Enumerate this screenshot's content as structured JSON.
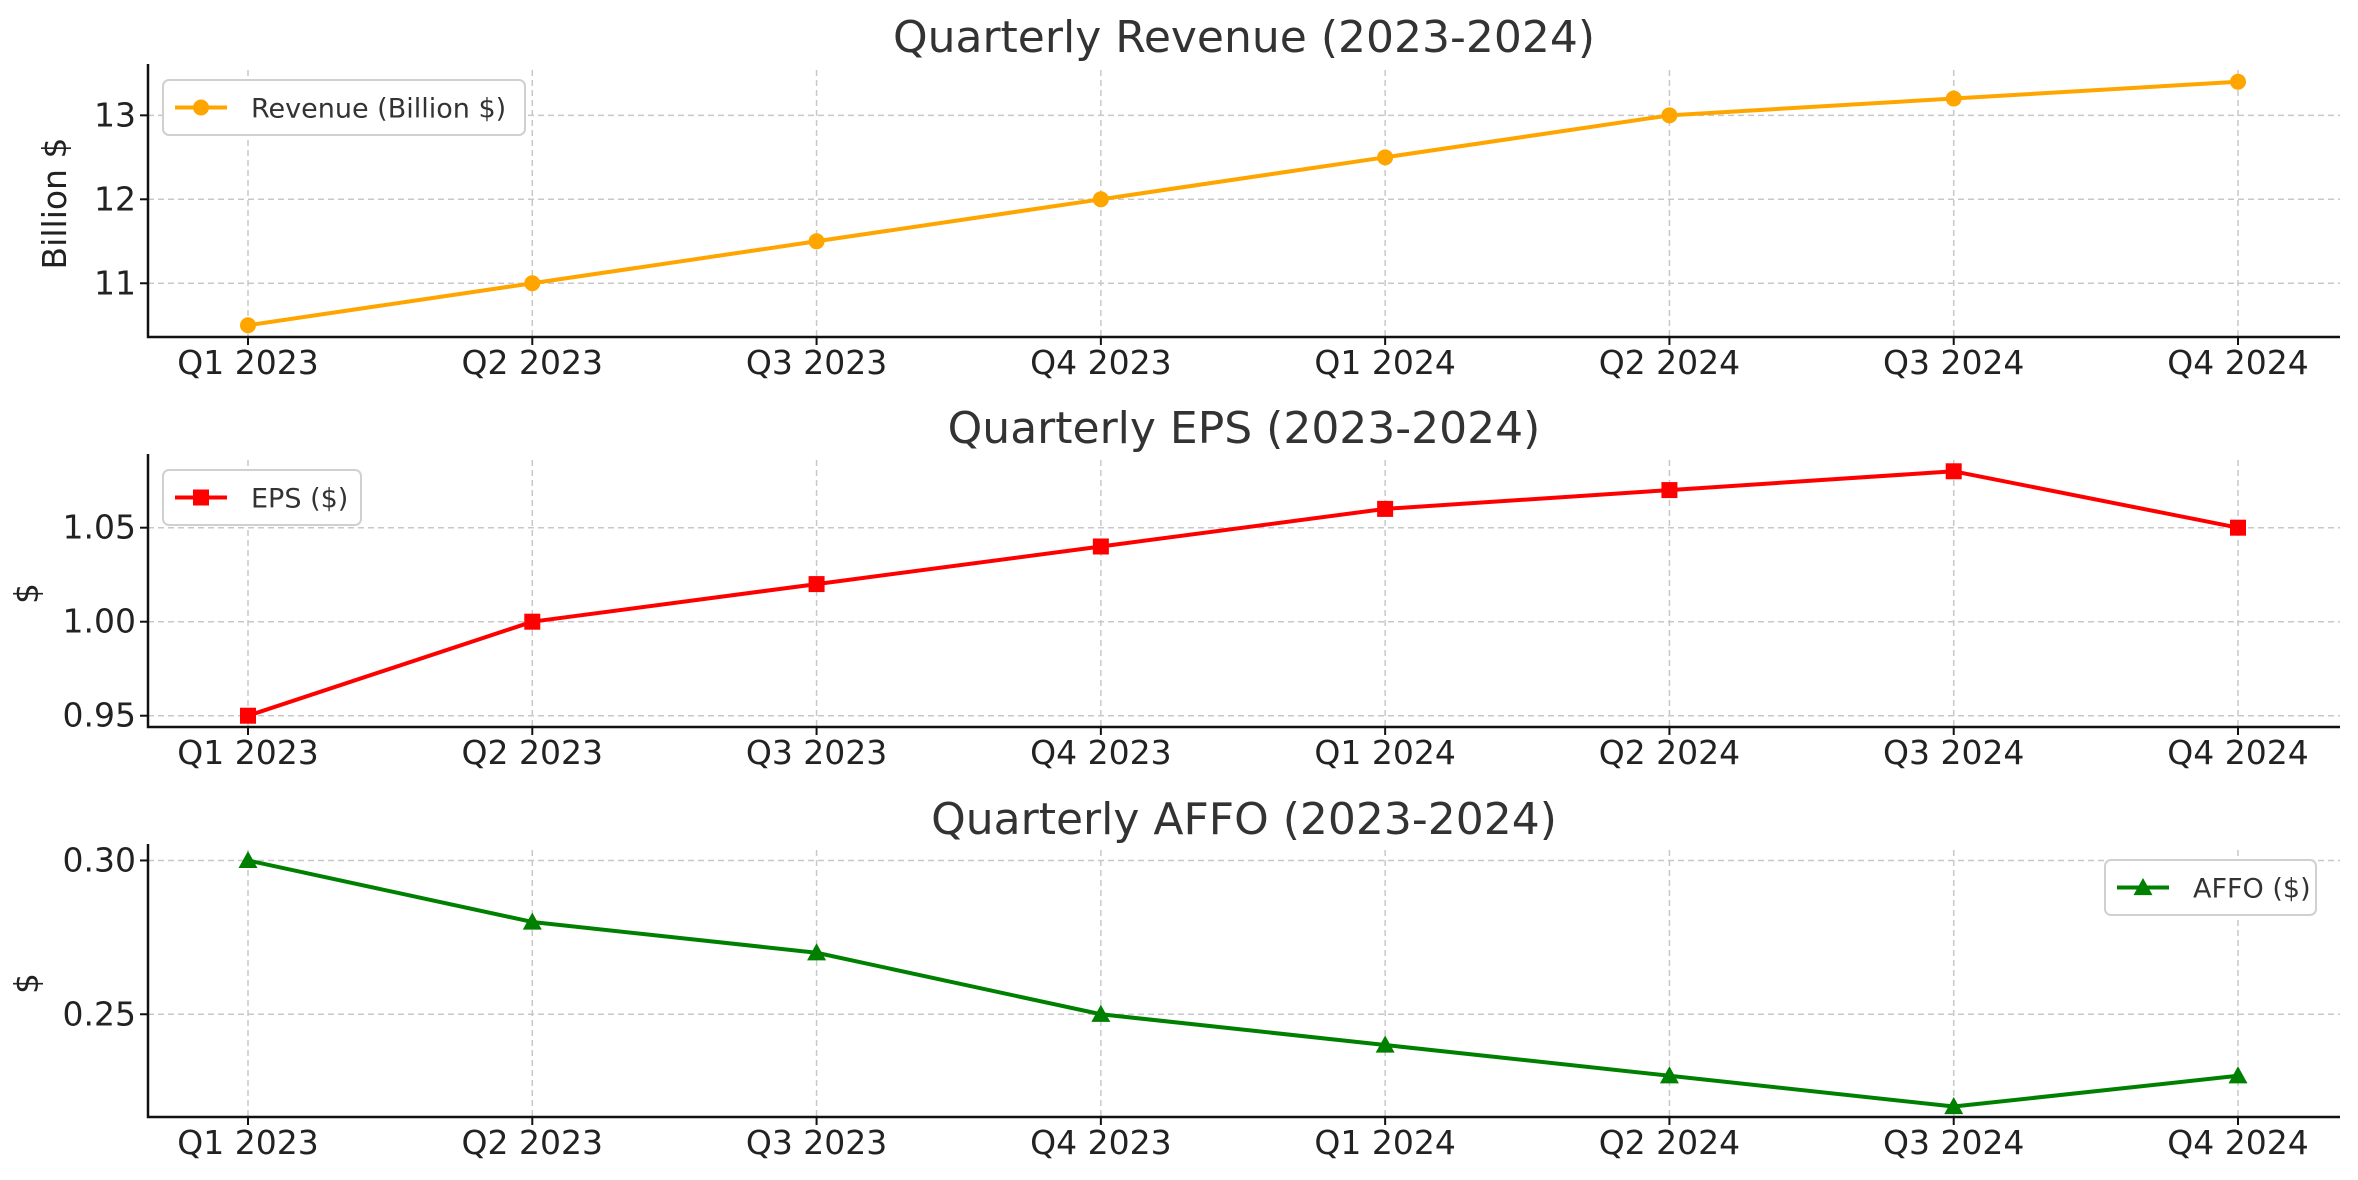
{
  "chart_data": [
    {
      "type": "line",
      "title": "Quarterly Revenue (2023-2024)",
      "xlabel": "",
      "ylabel": "Billion $",
      "categories": [
        "Q1 2023",
        "Q2 2023",
        "Q3 2023",
        "Q4 2023",
        "Q1 2024",
        "Q2 2024",
        "Q3 2024",
        "Q4 2024"
      ],
      "series": [
        {
          "name": "Revenue (Billion $)",
          "values": [
            10.5,
            11.0,
            11.5,
            12.0,
            12.5,
            13.0,
            13.2,
            13.4
          ],
          "color": "#FFA500",
          "marker": "circle"
        }
      ],
      "yticks": [
        "11",
        "12",
        "13"
      ],
      "ylim": [
        10.36,
        13.54
      ],
      "grid": true,
      "legend": "top-left"
    },
    {
      "type": "line",
      "title": "Quarterly EPS (2023-2024)",
      "xlabel": "",
      "ylabel": "$",
      "categories": [
        "Q1 2023",
        "Q2 2023",
        "Q3 2023",
        "Q4 2023",
        "Q1 2024",
        "Q2 2024",
        "Q3 2024",
        "Q4 2024"
      ],
      "series": [
        {
          "name": "EPS ($)",
          "values": [
            0.95,
            1.0,
            1.02,
            1.04,
            1.06,
            1.07,
            1.08,
            1.05
          ],
          "color": "#FF0000",
          "marker": "square"
        }
      ],
      "yticks": [
        "0.95",
        "1.00",
        "1.05"
      ],
      "ylim": [
        0.944,
        1.086
      ],
      "grid": true,
      "legend": "top-left"
    },
    {
      "type": "line",
      "title": "Quarterly AFFO (2023-2024)",
      "xlabel": "",
      "ylabel": "$",
      "categories": [
        "Q1 2023",
        "Q2 2023",
        "Q3 2023",
        "Q4 2023",
        "Q1 2024",
        "Q2 2024",
        "Q3 2024",
        "Q4 2024"
      ],
      "series": [
        {
          "name": "AFFO ($)",
          "values": [
            0.3,
            0.28,
            0.27,
            0.25,
            0.24,
            0.23,
            0.22,
            0.23
          ],
          "color": "#008000",
          "marker": "triangle"
        }
      ],
      "yticks": [
        "0.25",
        "0.30"
      ],
      "ylim": [
        0.2166,
        0.3034
      ],
      "grid": true,
      "legend": "top-right"
    }
  ]
}
